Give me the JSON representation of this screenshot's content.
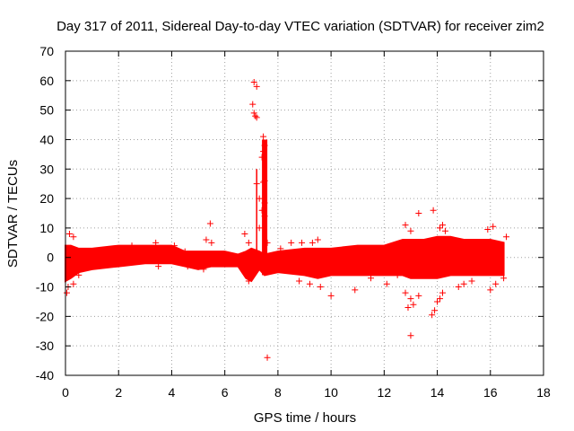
{
  "chart_data": {
    "type": "scatter",
    "title": "Day 317 of 2011, Sidereal Day-to-day VTEC variation (SDTVAR) for receiver zim2",
    "xlabel": "GPS time / hours",
    "ylabel": "SDTVAR / TECUs",
    "xlim": [
      0,
      18
    ],
    "ylim": [
      -40,
      70
    ],
    "xticks": [
      "0",
      "2",
      "4",
      "6",
      "8",
      "10",
      "12",
      "14",
      "16",
      "18"
    ],
    "yticks": [
      "70",
      "60",
      "50",
      "40",
      "30",
      "20",
      "10",
      "0",
      "-10",
      "-20",
      "-30",
      "-40"
    ],
    "grid": true,
    "marker": "+",
    "color": "#ff0000",
    "band": [
      {
        "x": 0.0,
        "lo": -8,
        "hi": 4
      },
      {
        "x": 0.2,
        "lo": -7,
        "hi": 4
      },
      {
        "x": 0.5,
        "lo": -5,
        "hi": 3
      },
      {
        "x": 1.0,
        "lo": -4,
        "hi": 3
      },
      {
        "x": 2.0,
        "lo": -3,
        "hi": 4
      },
      {
        "x": 3.0,
        "lo": -2,
        "hi": 4
      },
      {
        "x": 4.0,
        "lo": -2,
        "hi": 4
      },
      {
        "x": 4.5,
        "lo": -3,
        "hi": 2
      },
      {
        "x": 5.0,
        "lo": -4,
        "hi": 2
      },
      {
        "x": 5.5,
        "lo": -3,
        "hi": 2
      },
      {
        "x": 6.0,
        "lo": -3,
        "hi": 2
      },
      {
        "x": 6.5,
        "lo": -3,
        "hi": 1
      },
      {
        "x": 6.8,
        "lo": -7,
        "hi": 2
      },
      {
        "x": 7.0,
        "lo": -8,
        "hi": 3
      },
      {
        "x": 7.3,
        "lo": -4,
        "hi": 2
      },
      {
        "x": 7.5,
        "lo": -6,
        "hi": 1
      },
      {
        "x": 8.0,
        "lo": -5,
        "hi": 2
      },
      {
        "x": 9.0,
        "lo": -6,
        "hi": 3
      },
      {
        "x": 9.5,
        "lo": -7,
        "hi": 3
      },
      {
        "x": 10.0,
        "lo": -6,
        "hi": 3
      },
      {
        "x": 11.0,
        "lo": -6,
        "hi": 4
      },
      {
        "x": 12.0,
        "lo": -6,
        "hi": 4
      },
      {
        "x": 12.7,
        "lo": -6,
        "hi": 6
      },
      {
        "x": 13.0,
        "lo": -7,
        "hi": 6
      },
      {
        "x": 13.5,
        "lo": -7,
        "hi": 6
      },
      {
        "x": 14.0,
        "lo": -7,
        "hi": 7
      },
      {
        "x": 14.5,
        "lo": -6,
        "hi": 7
      },
      {
        "x": 15.0,
        "lo": -6,
        "hi": 6
      },
      {
        "x": 15.5,
        "lo": -6,
        "hi": 6
      },
      {
        "x": 16.0,
        "lo": -6,
        "hi": 6
      },
      {
        "x": 16.5,
        "lo": -6,
        "hi": 5
      }
    ],
    "spike": {
      "x": 7.5,
      "lo": -6,
      "hi": 40
    },
    "points": [
      [
        0.05,
        -12
      ],
      [
        0.1,
        -10
      ],
      [
        0.15,
        8
      ],
      [
        0.3,
        7
      ],
      [
        0.3,
        -9
      ],
      [
        0.5,
        -6
      ],
      [
        2.5,
        4
      ],
      [
        3.4,
        5
      ],
      [
        3.5,
        -3
      ],
      [
        4.1,
        4
      ],
      [
        4.5,
        2
      ],
      [
        4.6,
        -3
      ],
      [
        5.3,
        6
      ],
      [
        5.45,
        11.5
      ],
      [
        5.5,
        5
      ],
      [
        5.2,
        -4
      ],
      [
        6.75,
        8
      ],
      [
        6.9,
        5
      ],
      [
        6.9,
        -8
      ],
      [
        7.1,
        59.5
      ],
      [
        7.2,
        58
      ],
      [
        7.05,
        52
      ],
      [
        7.1,
        49
      ],
      [
        7.15,
        48
      ],
      [
        7.2,
        47.5
      ],
      [
        7.45,
        41
      ],
      [
        7.5,
        38
      ],
      [
        7.45,
        36
      ],
      [
        7.4,
        34
      ],
      [
        7.5,
        26
      ],
      [
        7.45,
        25.5
      ],
      [
        7.2,
        25
      ],
      [
        7.3,
        20
      ],
      [
        7.5,
        18.5
      ],
      [
        7.4,
        16
      ],
      [
        7.5,
        14
      ],
      [
        7.3,
        10
      ],
      [
        7.6,
        5
      ],
      [
        7.35,
        -1
      ],
      [
        7.6,
        -34
      ],
      [
        7.75,
        -2
      ],
      [
        8.1,
        3
      ],
      [
        8.5,
        5
      ],
      [
        8.9,
        5
      ],
      [
        9.3,
        5
      ],
      [
        9.5,
        6
      ],
      [
        8.8,
        -8
      ],
      [
        9.2,
        -9
      ],
      [
        9.6,
        -10
      ],
      [
        10.0,
        -13
      ],
      [
        10.9,
        -11
      ],
      [
        11.5,
        -7
      ],
      [
        12.1,
        -9
      ],
      [
        12.5,
        -6
      ],
      [
        12.8,
        11
      ],
      [
        13.0,
        9
      ],
      [
        13.3,
        15
      ],
      [
        13.85,
        16
      ],
      [
        14.1,
        10
      ],
      [
        14.2,
        11
      ],
      [
        14.3,
        9
      ],
      [
        13.0,
        -26.5
      ],
      [
        12.9,
        -17
      ],
      [
        13.1,
        -16
      ],
      [
        13.0,
        -14
      ],
      [
        12.8,
        -12
      ],
      [
        13.3,
        -13
      ],
      [
        13.8,
        -19.5
      ],
      [
        13.9,
        -18
      ],
      [
        14.0,
        -15
      ],
      [
        14.1,
        -14
      ],
      [
        14.2,
        -12
      ],
      [
        14.8,
        -10
      ],
      [
        15.0,
        -9
      ],
      [
        15.3,
        -8
      ],
      [
        15.9,
        9.5
      ],
      [
        16.1,
        10.5
      ],
      [
        16.0,
        -11
      ],
      [
        16.2,
        -9
      ],
      [
        16.5,
        -7
      ],
      [
        16.6,
        7
      ]
    ]
  }
}
